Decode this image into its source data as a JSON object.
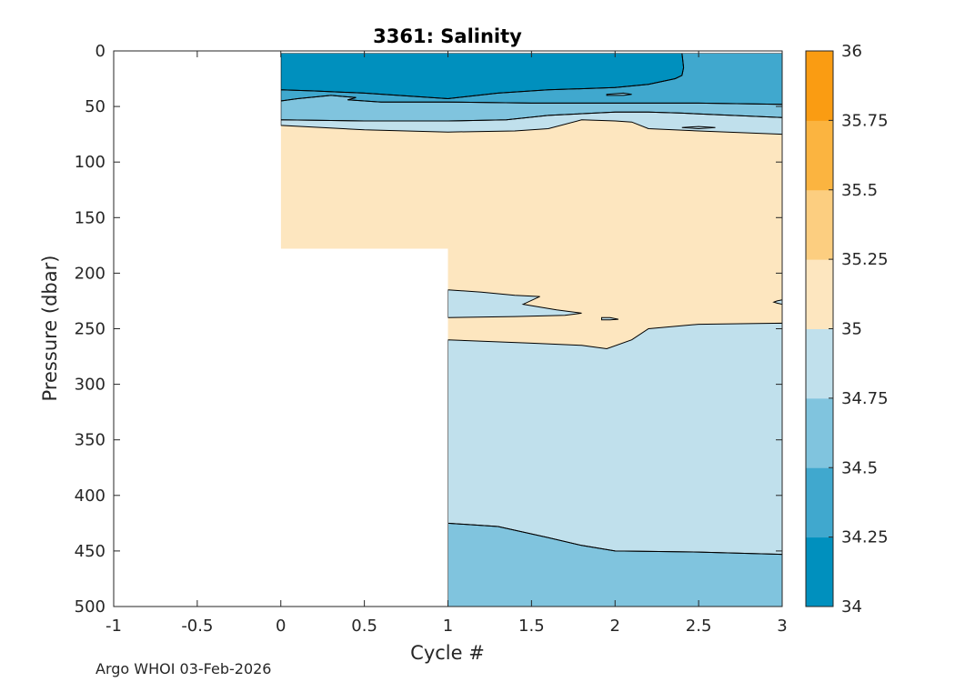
{
  "chart_data": {
    "type": "contour",
    "title": "3361:  Salinity",
    "xlabel": "Cycle #",
    "ylabel": "Pressure (dbar)",
    "xlim": [
      -1,
      3
    ],
    "ylim": [
      0,
      500
    ],
    "y_reversed": true,
    "x_ticks": [
      -1,
      -0.5,
      0,
      0.5,
      1,
      1.5,
      2,
      2.5,
      3
    ],
    "x_tick_labels": [
      "-1",
      "-0.5",
      "0",
      "0.5",
      "1",
      "1.5",
      "2",
      "2.5",
      "3"
    ],
    "y_ticks": [
      0,
      50,
      100,
      150,
      200,
      250,
      300,
      350,
      400,
      450,
      500
    ],
    "y_tick_labels": [
      "0",
      "50",
      "100",
      "150",
      "200",
      "250",
      "300",
      "350",
      "400",
      "450",
      "500"
    ],
    "colorbar": {
      "range": [
        34,
        36
      ],
      "levels": [
        34,
        34.25,
        34.5,
        34.75,
        35,
        35.25,
        35.5,
        35.75,
        36
      ],
      "tick_labels": [
        "34",
        "34.25",
        "34.5",
        "34.75",
        "35",
        "35.25",
        "35.5",
        "35.75",
        "36"
      ],
      "colors": [
        "#0090be",
        "#40a8ce",
        "#80c4de",
        "#c0e0ec",
        "#fde6bf",
        "#fcce80",
        "#fbb440",
        "#fa9c12"
      ]
    },
    "profiles": [
      {
        "cycle": 0,
        "max_pressure": 178
      },
      {
        "cycle": 1,
        "max_pressure": 500
      },
      {
        "cycle": 2,
        "max_pressure": 500
      },
      {
        "cycle": 3,
        "max_pressure": 500
      }
    ],
    "regions": [
      {
        "level": 34.5,
        "comment": "deep water 34.5-34.75",
        "pts": [
          [
            1,
            425
          ],
          [
            1.3,
            428
          ],
          [
            1.6,
            438
          ],
          [
            1.8,
            445
          ],
          [
            2,
            450
          ],
          [
            2.5,
            451
          ],
          [
            3,
            453
          ],
          [
            3,
            500
          ],
          [
            1,
            500
          ]
        ]
      },
      {
        "level": 34.75,
        "comment": "34.75-35 layer below 245 dbar",
        "pts": [
          [
            1,
            260
          ],
          [
            1.5,
            263
          ],
          [
            1.8,
            265
          ],
          [
            1.95,
            268
          ],
          [
            2.1,
            260
          ],
          [
            2.2,
            250
          ],
          [
            2.5,
            246
          ],
          [
            3,
            245
          ],
          [
            3,
            453
          ],
          [
            2.5,
            451
          ],
          [
            2,
            450
          ],
          [
            1.8,
            445
          ],
          [
            1.6,
            438
          ],
          [
            1.3,
            428
          ],
          [
            1,
            425
          ]
        ]
      },
      {
        "level": 34.75,
        "comment": "34.75-35 lens near 220-240 dbar",
        "pts": [
          [
            1,
            215
          ],
          [
            1.2,
            217
          ],
          [
            1.4,
            220
          ],
          [
            1.55,
            221
          ],
          [
            1.45,
            228
          ],
          [
            1.65,
            233
          ],
          [
            1.8,
            236
          ],
          [
            1.7,
            238
          ],
          [
            1.4,
            239
          ],
          [
            1,
            240
          ]
        ]
      },
      {
        "level": 34.75,
        "comment": "thin lens near 241 dbar",
        "pts": [
          [
            1.92,
            240
          ],
          [
            1.97,
            240
          ],
          [
            2.02,
            241.5
          ],
          [
            1.97,
            242
          ],
          [
            1.92,
            242
          ]
        ]
      },
      {
        "level": 34.75,
        "comment": "small lens at right edge",
        "pts": [
          [
            3,
            224
          ],
          [
            2.97,
            225
          ],
          [
            2.95,
            226
          ],
          [
            2.97,
            227
          ],
          [
            3,
            228
          ]
        ]
      },
      {
        "level": 34.75,
        "comment": "shallow 34.75-35 band",
        "pts": [
          [
            0,
            62
          ],
          [
            0.5,
            63
          ],
          [
            1,
            63
          ],
          [
            1.35,
            62
          ],
          [
            1.6,
            58
          ],
          [
            2,
            55
          ],
          [
            2.2,
            55
          ],
          [
            2.4,
            56
          ],
          [
            3,
            60
          ],
          [
            3,
            75
          ],
          [
            2.5,
            72
          ],
          [
            2.2,
            70
          ],
          [
            2.1,
            64
          ],
          [
            2,
            63
          ],
          [
            1.8,
            62
          ],
          [
            1.6,
            70
          ],
          [
            1.4,
            72
          ],
          [
            1,
            73
          ],
          [
            0.5,
            71
          ],
          [
            0,
            67
          ]
        ]
      },
      {
        "level": 34.5,
        "comment": "34.5-34.75 band",
        "pts": [
          [
            0,
            45
          ],
          [
            0.1,
            43
          ],
          [
            0.3,
            40
          ],
          [
            0.45,
            42
          ],
          [
            0.4,
            44
          ],
          [
            0.6,
            46
          ],
          [
            1,
            46
          ],
          [
            1.5,
            47
          ],
          [
            2,
            47
          ],
          [
            2.5,
            47
          ],
          [
            3,
            48
          ],
          [
            3,
            60
          ],
          [
            2.4,
            56
          ],
          [
            2.2,
            55
          ],
          [
            2,
            55
          ],
          [
            1.6,
            58
          ],
          [
            1.35,
            62
          ],
          [
            1,
            63
          ],
          [
            0.5,
            63
          ],
          [
            0,
            62
          ]
        ]
      },
      {
        "level": 34.25,
        "comment": "34.25-34.5 band and right surface",
        "pts": [
          [
            0,
            35
          ],
          [
            0.2,
            36
          ],
          [
            0.5,
            38
          ],
          [
            1,
            43
          ],
          [
            1.3,
            38
          ],
          [
            1.6,
            35
          ],
          [
            2,
            33
          ],
          [
            2.2,
            30
          ],
          [
            2.36,
            25
          ],
          [
            2.4,
            22
          ],
          [
            2.41,
            15
          ],
          [
            2.4,
            2
          ],
          [
            3,
            2
          ],
          [
            3,
            48
          ],
          [
            2.5,
            47
          ],
          [
            2,
            47
          ],
          [
            1.5,
            47
          ],
          [
            1,
            46
          ],
          [
            0.6,
            46
          ],
          [
            0.4,
            44
          ],
          [
            0.45,
            42
          ],
          [
            0.3,
            40
          ],
          [
            0.1,
            43
          ],
          [
            0,
            45
          ]
        ]
      },
      {
        "level": 34,
        "comment": "freshest surface water",
        "pts": [
          [
            0,
            2
          ],
          [
            2.4,
            2
          ],
          [
            2.41,
            15
          ],
          [
            2.4,
            22
          ],
          [
            2.36,
            25
          ],
          [
            2.2,
            30
          ],
          [
            2,
            33
          ],
          [
            1.6,
            35
          ],
          [
            1.3,
            38
          ],
          [
            1,
            43
          ],
          [
            0.5,
            38
          ],
          [
            0.2,
            36
          ],
          [
            0,
            35
          ]
        ]
      },
      {
        "level": 34.5,
        "comment": "tiny lens near cycle 2.0, 40 dbar",
        "pts": [
          [
            1.95,
            39
          ],
          [
            2.05,
            38
          ],
          [
            2.1,
            39
          ],
          [
            2.05,
            40
          ],
          [
            1.95,
            40
          ]
        ]
      },
      {
        "level": 34.75,
        "comment": "tiny lens near cycle 2.5, 70 dbar",
        "pts": [
          [
            2.4,
            69
          ],
          [
            2.5,
            68
          ],
          [
            2.6,
            69
          ],
          [
            2.5,
            70
          ]
        ]
      }
    ]
  },
  "footer": {
    "credit": "Argo WHOI 03-Feb-2026"
  }
}
